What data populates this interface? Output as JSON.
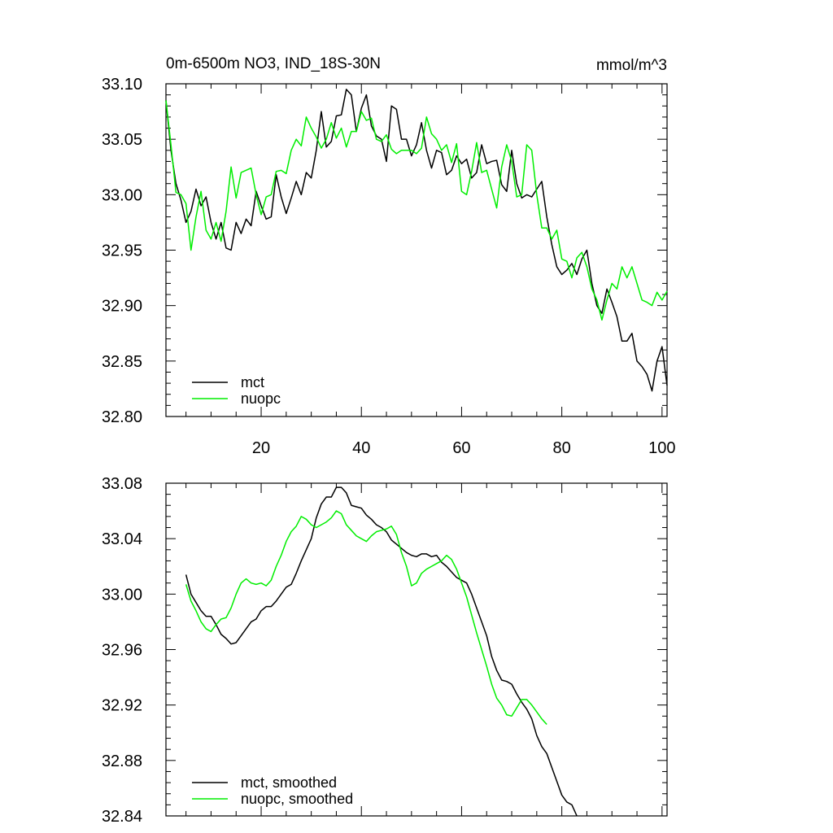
{
  "chart_data": [
    {
      "type": "line",
      "title": "0m-6500m NO3, IND_18S-30N",
      "units": "mmol/m^3",
      "xlim": [
        1,
        101
      ],
      "ylim": [
        32.8,
        33.1
      ],
      "xticks": [
        20,
        40,
        60,
        80,
        100
      ],
      "yticks": [
        32.8,
        32.85,
        32.9,
        32.95,
        33.0,
        33.05,
        33.1
      ],
      "ytick_labels": [
        "32.80",
        "32.85",
        "32.90",
        "32.95",
        "33.00",
        "33.05",
        "33.10"
      ],
      "xtick_labels": [
        "20",
        "40",
        "60",
        "80",
        "100"
      ],
      "legend": [
        "mct",
        "nuopc"
      ],
      "series": [
        {
          "name": "mct",
          "color": "#000000",
          "x_start": 1,
          "values": [
            33.085,
            33.04,
            33.01,
            32.995,
            32.975,
            32.985,
            33.005,
            32.99,
            32.998,
            32.975,
            32.96,
            32.975,
            32.952,
            32.95,
            32.975,
            32.965,
            32.978,
            32.972,
            33.003,
            32.99,
            32.978,
            32.98,
            33.018,
            32.998,
            32.983,
            32.997,
            33.012,
            33.0,
            33.02,
            33.015,
            33.04,
            33.075,
            33.043,
            33.048,
            33.071,
            33.072,
            33.095,
            33.09,
            33.057,
            33.078,
            33.09,
            33.062,
            33.053,
            33.05,
            33.03,
            33.08,
            33.077,
            33.05,
            33.05,
            33.035,
            33.045,
            33.065,
            33.04,
            33.024,
            33.04,
            33.038,
            33.018,
            33.022,
            33.035,
            33.028,
            33.032,
            33.015,
            33.02,
            33.045,
            33.028,
            33.03,
            33.031,
            33.009,
            33.003,
            33.04,
            33.01,
            32.997,
            33.0,
            32.998,
            33.005,
            33.012,
            32.98,
            32.955,
            32.935,
            32.928,
            32.932,
            32.938,
            32.928,
            32.942,
            32.95,
            32.92,
            32.9,
            32.893,
            32.915,
            32.903,
            32.89,
            32.868,
            32.868,
            32.875,
            32.85,
            32.845,
            32.838,
            32.823,
            32.85,
            32.863,
            32.828
          ]
        },
        {
          "name": "nuopc",
          "color": "#00ee00",
          "x_start": 1,
          "values": [
            33.085,
            33.045,
            33.002,
            33.0,
            32.992,
            32.95,
            32.98,
            33.003,
            32.968,
            32.96,
            32.975,
            32.958,
            32.985,
            33.025,
            32.997,
            33.02,
            33.022,
            33.024,
            33.0,
            32.982,
            32.998,
            33.0,
            33.021,
            33.022,
            33.019,
            33.04,
            33.05,
            33.044,
            33.07,
            33.06,
            33.052,
            33.042,
            33.05,
            33.065,
            33.051,
            33.06,
            33.043,
            33.057,
            33.057,
            33.075,
            33.067,
            33.069,
            33.05,
            33.048,
            33.054,
            33.041,
            33.037,
            33.04,
            33.04,
            33.04,
            33.037,
            33.042,
            33.07,
            33.055,
            33.05,
            33.04,
            33.045,
            33.029,
            33.046,
            33.003,
            33.0,
            33.021,
            33.047,
            33.02,
            33.022,
            33.005,
            32.988,
            33.025,
            33.045,
            33.03,
            32.998,
            33.0,
            33.045,
            33.04,
            33.0,
            32.97,
            32.97,
            32.96,
            32.968,
            32.942,
            32.94,
            32.925,
            32.943,
            32.948,
            32.935,
            32.915,
            32.905,
            32.887,
            32.905,
            32.92,
            32.915,
            32.935,
            32.925,
            32.935,
            32.92,
            32.905,
            32.903,
            32.9,
            32.912,
            32.905,
            32.913
          ]
        }
      ]
    },
    {
      "type": "line",
      "title": "",
      "xlim": [
        1,
        101
      ],
      "ylim": [
        32.84,
        33.08
      ],
      "xticks": [
        20,
        40,
        60,
        80,
        100
      ],
      "yticks": [
        32.84,
        32.88,
        32.92,
        32.96,
        33.0,
        33.04,
        33.08
      ],
      "ytick_labels": [
        "32.84",
        "32.88",
        "32.92",
        "32.96",
        "33.00",
        "33.04",
        "33.08"
      ],
      "legend": [
        "mct, smoothed",
        "nuopc, smoothed"
      ],
      "series": [
        {
          "name": "mct, smoothed",
          "color": "#000000",
          "x_start": 5,
          "values": [
            33.014,
            33.0,
            32.994,
            32.988,
            32.984,
            32.984,
            32.978,
            32.971,
            32.968,
            32.964,
            32.965,
            32.97,
            32.975,
            32.98,
            32.982,
            32.988,
            32.991,
            32.991,
            32.995,
            33.0,
            33.005,
            33.007,
            33.015,
            33.024,
            33.032,
            33.04,
            33.055,
            33.065,
            33.07,
            33.07,
            33.077,
            33.077,
            33.073,
            33.064,
            33.063,
            33.062,
            33.057,
            33.054,
            33.05,
            33.048,
            33.045,
            33.039,
            33.036,
            33.033,
            33.03,
            33.028,
            33.027,
            33.029,
            33.029,
            33.027,
            33.028,
            33.023,
            33.02,
            33.016,
            33.012,
            33.01,
            33.008,
            33.0,
            32.99,
            32.98,
            32.97,
            32.955,
            32.945,
            32.938,
            32.937,
            32.935,
            32.928,
            32.922,
            32.917,
            32.91,
            32.898,
            32.89,
            32.885,
            32.875,
            32.865,
            32.855,
            32.85,
            32.848,
            32.84
          ]
        },
        {
          "name": "nuopc, smoothed",
          "color": "#00ee00",
          "x_start": 5,
          "values": [
            33.007,
            32.995,
            32.988,
            32.98,
            32.975,
            32.973,
            32.978,
            32.982,
            32.983,
            32.99,
            33.0,
            33.008,
            33.011,
            33.008,
            33.007,
            33.008,
            33.006,
            33.01,
            33.02,
            33.028,
            33.038,
            33.045,
            33.049,
            33.056,
            33.054,
            33.05,
            33.048,
            33.05,
            33.052,
            33.055,
            33.06,
            33.058,
            33.05,
            33.046,
            33.042,
            33.04,
            33.038,
            33.042,
            33.045,
            33.046,
            33.047,
            33.049,
            33.043,
            33.03,
            33.02,
            33.006,
            33.008,
            33.015,
            33.018,
            33.02,
            33.022,
            33.024,
            33.028,
            33.025,
            33.018,
            33.008,
            32.998,
            32.985,
            32.972,
            32.96,
            32.948,
            32.935,
            32.925,
            32.92,
            32.913,
            32.912,
            32.918,
            32.924,
            32.924,
            32.92,
            32.915,
            32.91,
            32.906
          ]
        }
      ]
    }
  ]
}
